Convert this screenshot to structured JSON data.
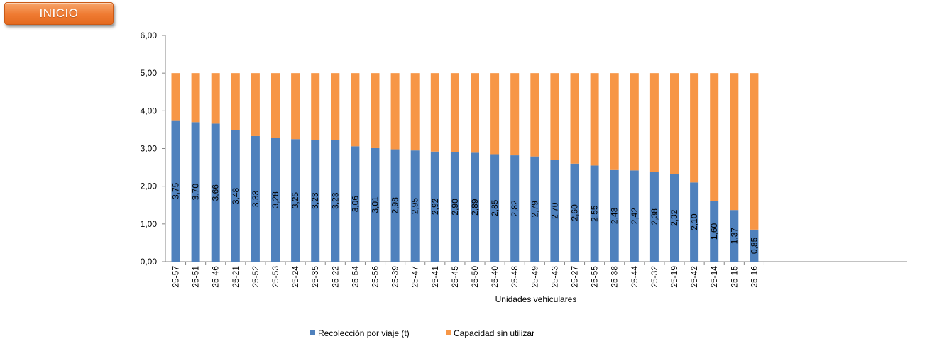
{
  "nav": {
    "inicio_label": "INICIO"
  },
  "colors": {
    "series1": "#4f81bd",
    "series2": "#f79646",
    "accent_button": "#ef7a31"
  },
  "chart_data": {
    "type": "bar",
    "stacked": true,
    "xlabel": "Unidades vehiculares",
    "ylabel": "",
    "ylim": [
      0,
      6
    ],
    "y_ticks": [
      "0,00",
      "1,00",
      "2,00",
      "3,00",
      "4,00",
      "5,00",
      "6,00"
    ],
    "grid": false,
    "legend_position": "bottom",
    "categories": [
      "25-57",
      "25-51",
      "25-46",
      "25-21",
      "25-52",
      "25-53",
      "25-24",
      "25-35",
      "25-22",
      "25-54",
      "25-56",
      "25-39",
      "25-47",
      "25-41",
      "25-45",
      "25-50",
      "25-40",
      "25-48",
      "25-49",
      "25-43",
      "25-27",
      "25-55",
      "25-38",
      "25-44",
      "25-32",
      "25-19",
      "25-42",
      "25-14",
      "25-15",
      "25-16"
    ],
    "series": [
      {
        "name": "Recolección por viaje (t)",
        "color": "#4f81bd",
        "values": [
          3.75,
          3.7,
          3.66,
          3.48,
          3.33,
          3.28,
          3.25,
          3.23,
          3.23,
          3.06,
          3.01,
          2.98,
          2.95,
          2.92,
          2.9,
          2.89,
          2.85,
          2.82,
          2.79,
          2.7,
          2.6,
          2.55,
          2.43,
          2.42,
          2.38,
          2.32,
          2.1,
          1.6,
          1.37,
          0.85
        ],
        "labels": [
          "3,75",
          "3,70",
          "3,66",
          "3,48",
          "3,33",
          "3,28",
          "3,25",
          "3,23",
          "3,23",
          "3,06",
          "3,01",
          "2,98",
          "2,95",
          "2,92",
          "2,90",
          "2,89",
          "2,85",
          "2,82",
          "2,79",
          "2,70",
          "2,60",
          "2,55",
          "2,43",
          "2,42",
          "2,38",
          "2,32",
          "2,10",
          "1,60",
          "1,37",
          "0,85"
        ]
      },
      {
        "name": "Capacidad sin utilizar",
        "color": "#f79646",
        "values": [
          1.25,
          1.3,
          1.34,
          1.52,
          1.67,
          1.72,
          1.75,
          1.77,
          1.77,
          1.94,
          1.99,
          2.02,
          2.05,
          2.08,
          2.1,
          2.11,
          2.15,
          2.18,
          2.21,
          2.3,
          2.4,
          2.45,
          2.57,
          2.58,
          2.62,
          2.68,
          2.9,
          3.4,
          3.63,
          4.15
        ]
      }
    ]
  }
}
